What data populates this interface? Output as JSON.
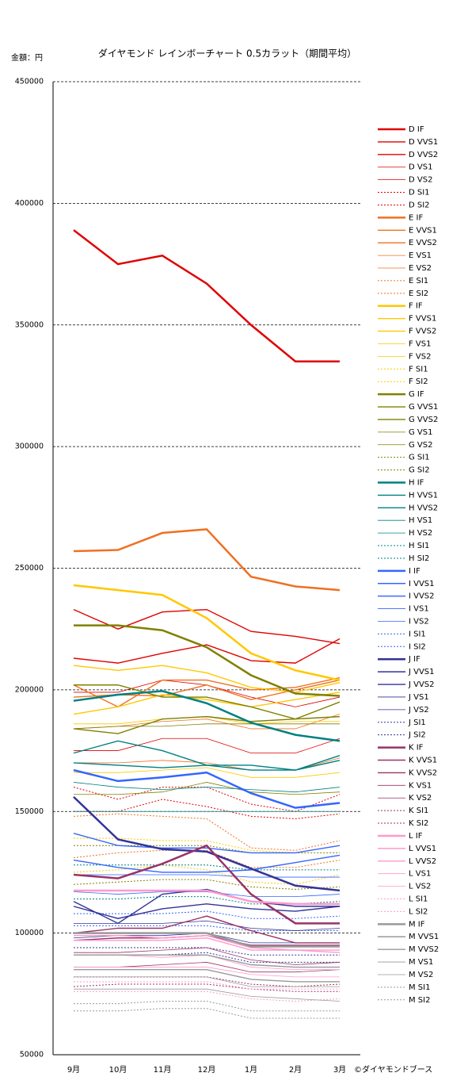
{
  "chart_data": {
    "type": "line",
    "title": "ダイヤモンド レインボーチャート 0.5カラット（期間平均）",
    "y_label": "金額：円",
    "source": "©ダイヤモンドブース",
    "categories": [
      "9月",
      "10月",
      "11月",
      "12月",
      "1月",
      "2月",
      "3月"
    ],
    "ylim": [
      50000,
      450000
    ],
    "yticks": [
      50000,
      100000,
      150000,
      200000,
      250000,
      300000,
      350000,
      400000,
      450000
    ],
    "grid": true,
    "series": [
      {
        "name": "D IF",
        "color": "#e00000",
        "width": 2.5,
        "dashed": false,
        "values": [
          389000,
          375000,
          378500,
          367000,
          350000,
          335000,
          335000
        ]
      },
      {
        "name": "D VVS1",
        "color": "#e00000",
        "width": 1.4,
        "dashed": false,
        "values": [
          233000,
          225000,
          232000,
          233000,
          224000,
          222000,
          219000
        ]
      },
      {
        "name": "D VVS2",
        "color": "#e00000",
        "width": 1.4,
        "dashed": false,
        "values": [
          213000,
          211000,
          215000,
          218500,
          212000,
          211000,
          221000
        ]
      },
      {
        "name": "D VS1",
        "color": "#e00000",
        "width": 0.8,
        "dashed": false,
        "values": [
          199000,
          199000,
          204000,
          202000,
          197000,
          193000,
          197000
        ]
      },
      {
        "name": "D VS2",
        "color": "#e00000",
        "width": 0.8,
        "dashed": false,
        "values": [
          175000,
          175000,
          180000,
          180000,
          174000,
          174000,
          180000
        ]
      },
      {
        "name": "D SI1",
        "color": "#e00000",
        "width": 1,
        "dashed": true,
        "values": [
          160000,
          155000,
          160000,
          160000,
          153000,
          150000,
          157000
        ]
      },
      {
        "name": "D SI2",
        "color": "#e00000",
        "width": 1,
        "dashed": true,
        "values": [
          150000,
          150000,
          155000,
          152000,
          148000,
          147000,
          149000
        ]
      },
      {
        "name": "E IF",
        "color": "#f07020",
        "width": 2.5,
        "dashed": false,
        "values": [
          257000,
          257500,
          264500,
          266000,
          246500,
          242500,
          241000
        ]
      },
      {
        "name": "E VVS1",
        "color": "#f07020",
        "width": 1.4,
        "dashed": false,
        "values": [
          202000,
          193000,
          204000,
          204000,
          200000,
          201000,
          205000
        ]
      },
      {
        "name": "E VVS2",
        "color": "#f07020",
        "width": 1.4,
        "dashed": false,
        "values": [
          197000,
          198000,
          197500,
          202000,
          196000,
          200000,
          204000
        ]
      },
      {
        "name": "E VS1",
        "color": "#f07020",
        "width": 0.8,
        "dashed": false,
        "values": [
          184000,
          185000,
          187000,
          188000,
          184000,
          184000,
          190000
        ]
      },
      {
        "name": "E VS2",
        "color": "#f07020",
        "width": 0.8,
        "dashed": false,
        "values": [
          170000,
          170000,
          171000,
          170000,
          167000,
          167000,
          172000
        ]
      },
      {
        "name": "E SI1",
        "color": "#f07020",
        "width": 1,
        "dashed": true,
        "values": [
          148000,
          149000,
          148000,
          147000,
          135000,
          134000,
          138000
        ]
      },
      {
        "name": "E SI2",
        "color": "#f07020",
        "width": 1,
        "dashed": true,
        "values": [
          131000,
          133000,
          134000,
          134000,
          127000,
          127000,
          130000
        ]
      },
      {
        "name": "F IF",
        "color": "#ffc800",
        "width": 2.5,
        "dashed": false,
        "values": [
          243000,
          241000,
          239000,
          229500,
          215000,
          208000,
          204000
        ]
      },
      {
        "name": "F VVS1",
        "color": "#ffc800",
        "width": 1.4,
        "dashed": false,
        "values": [
          210000,
          208000,
          210000,
          207000,
          201000,
          199000,
          203000
        ]
      },
      {
        "name": "F VVS2",
        "color": "#ffc800",
        "width": 1.4,
        "dashed": false,
        "values": [
          190000,
          193000,
          198000,
          196000,
          193000,
          196000,
          199000
        ]
      },
      {
        "name": "F VS1",
        "color": "#ffc800",
        "width": 0.8,
        "dashed": false,
        "values": [
          186000,
          186000,
          188000,
          189000,
          186000,
          187000,
          187000
        ]
      },
      {
        "name": "F VS2",
        "color": "#ffc800",
        "width": 0.8,
        "dashed": false,
        "values": [
          166000,
          166000,
          167000,
          168000,
          164000,
          164000,
          166000
        ]
      },
      {
        "name": "F SI1",
        "color": "#ffc800",
        "width": 1,
        "dashed": true,
        "values": [
          139000,
          139000,
          138000,
          138000,
          134000,
          133000,
          136000
        ]
      },
      {
        "name": "F SI2",
        "color": "#ffc800",
        "width": 1,
        "dashed": true,
        "values": [
          125000,
          126000,
          128000,
          126000,
          121000,
          120000,
          124000
        ]
      },
      {
        "name": "G IF",
        "color": "#808000",
        "width": 2.5,
        "dashed": false,
        "values": [
          226500,
          226500,
          224500,
          217500,
          206000,
          198500,
          197500
        ]
      },
      {
        "name": "G VVS1",
        "color": "#808000",
        "width": 1.4,
        "dashed": false,
        "values": [
          202000,
          202000,
          197000,
          197000,
          193000,
          188000,
          195000
        ]
      },
      {
        "name": "G VVS2",
        "color": "#808000",
        "width": 1.4,
        "dashed": false,
        "values": [
          184000,
          182000,
          188000,
          189000,
          187000,
          188000,
          189000
        ]
      },
      {
        "name": "G VS1",
        "color": "#808000",
        "width": 0.8,
        "dashed": false,
        "values": [
          184000,
          185000,
          185000,
          186000,
          186000,
          186000,
          186000
        ]
      },
      {
        "name": "G VS2",
        "color": "#808000",
        "width": 0.8,
        "dashed": false,
        "values": [
          157000,
          157000,
          158000,
          162000,
          158000,
          157000,
          158000
        ]
      },
      {
        "name": "G SI1",
        "color": "#808000",
        "width": 1,
        "dashed": true,
        "values": [
          136000,
          136000,
          136000,
          136000,
          133000,
          133000,
          133000
        ]
      },
      {
        "name": "G SI2",
        "color": "#808000",
        "width": 1,
        "dashed": true,
        "values": [
          120000,
          121000,
          122000,
          122000,
          119000,
          118000,
          119000
        ]
      },
      {
        "name": "H IF",
        "color": "#008080",
        "width": 2.5,
        "dashed": false,
        "values": [
          195500,
          198000,
          199500,
          194500,
          186500,
          181500,
          179000
        ]
      },
      {
        "name": "H VVS1",
        "color": "#008080",
        "width": 1.4,
        "dashed": false,
        "values": [
          174000,
          179000,
          175000,
          169000,
          169000,
          167000,
          173000
        ]
      },
      {
        "name": "H VVS2",
        "color": "#008080",
        "width": 1.4,
        "dashed": false,
        "values": [
          170000,
          169000,
          168000,
          169000,
          167000,
          167000,
          171000
        ]
      },
      {
        "name": "H VS1",
        "color": "#008080",
        "width": 0.8,
        "dashed": false,
        "values": [
          162000,
          160000,
          159000,
          160000,
          159000,
          158000,
          160000
        ]
      },
      {
        "name": "H VS2",
        "color": "#008080",
        "width": 0.8,
        "dashed": false,
        "values": [
          150000,
          150000,
          150000,
          150000,
          150000,
          150000,
          150000
        ]
      },
      {
        "name": "H SI1",
        "color": "#008080",
        "width": 1,
        "dashed": true,
        "values": [
          128000,
          128000,
          128000,
          128000,
          126000,
          126000,
          126000
        ]
      },
      {
        "name": "H SI2",
        "color": "#008080",
        "width": 1,
        "dashed": true,
        "values": [
          114000,
          114000,
          115000,
          115000,
          112000,
          112000,
          113000
        ]
      },
      {
        "name": "I IF",
        "color": "#3366ff",
        "width": 2.5,
        "dashed": false,
        "values": [
          167000,
          162500,
          164000,
          166000,
          157500,
          151500,
          153500
        ]
      },
      {
        "name": "I VVS1",
        "color": "#3366ff",
        "width": 1.4,
        "dashed": false,
        "values": [
          141000,
          136000,
          135000,
          135000,
          133000,
          133000,
          136000
        ]
      },
      {
        "name": "I VVS2",
        "color": "#3366ff",
        "width": 1.4,
        "dashed": false,
        "values": [
          130000,
          127000,
          125000,
          125000,
          126000,
          129000,
          132000
        ]
      },
      {
        "name": "I VS1",
        "color": "#3366ff",
        "width": 0.8,
        "dashed": false,
        "values": [
          124000,
          124000,
          124000,
          124000,
          123000,
          123000,
          123000
        ]
      },
      {
        "name": "I VS2",
        "color": "#3366ff",
        "width": 0.8,
        "dashed": false,
        "values": [
          117000,
          116000,
          117000,
          117000,
          115000,
          115000,
          116000
        ]
      },
      {
        "name": "I SI1",
        "color": "#3366ff",
        "width": 1,
        "dashed": true,
        "values": [
          108000,
          108000,
          108000,
          109000,
          106000,
          106000,
          107000
        ]
      },
      {
        "name": "I SI2",
        "color": "#3366ff",
        "width": 1,
        "dashed": true,
        "values": [
          103000,
          103000,
          103000,
          103000,
          101000,
          101000,
          101000
        ]
      },
      {
        "name": "J IF",
        "color": "#333399",
        "width": 2.5,
        "dashed": false,
        "values": [
          156000,
          138500,
          134500,
          133500,
          126500,
          119500,
          117500
        ]
      },
      {
        "name": "J VVS1",
        "color": "#333399",
        "width": 1.4,
        "dashed": false,
        "values": [
          113000,
          104000,
          116000,
          118000,
          113000,
          111000,
          111000
        ]
      },
      {
        "name": "J VVS2",
        "color": "#333399",
        "width": 1.4,
        "dashed": false,
        "values": [
          111000,
          106000,
          110000,
          112000,
          110000,
          109000,
          111000
        ]
      },
      {
        "name": "J VS1",
        "color": "#333399",
        "width": 0.8,
        "dashed": false,
        "values": [
          104000,
          104000,
          104000,
          105000,
          102000,
          101000,
          102000
        ]
      },
      {
        "name": "J VS2",
        "color": "#333399",
        "width": 0.8,
        "dashed": false,
        "values": [
          98000,
          99000,
          99000,
          100000,
          96000,
          96000,
          96000
        ]
      },
      {
        "name": "J SI1",
        "color": "#333399",
        "width": 1,
        "dashed": true,
        "values": [
          94000,
          94000,
          94000,
          94000,
          91000,
          91000,
          91000
        ]
      },
      {
        "name": "J SI2",
        "color": "#333399",
        "width": 1,
        "dashed": true,
        "values": [
          91000,
          91000,
          91000,
          92000,
          88000,
          88000,
          88000
        ]
      },
      {
        "name": "K IF",
        "color": "#993366",
        "width": 2.5,
        "dashed": false,
        "values": [
          124000,
          122500,
          128500,
          136000,
          116000,
          104000,
          104000
        ]
      },
      {
        "name": "K VVS1",
        "color": "#993366",
        "width": 1.4,
        "dashed": false,
        "values": [
          100000,
          102000,
          102000,
          107000,
          101000,
          96000,
          96000
        ]
      },
      {
        "name": "K VVS2",
        "color": "#993366",
        "width": 1.4,
        "dashed": false,
        "values": [
          97000,
          98000,
          98000,
          99000,
          95000,
          95000,
          95000
        ]
      },
      {
        "name": "K VS1",
        "color": "#993366",
        "width": 0.8,
        "dashed": false,
        "values": [
          92000,
          92000,
          93000,
          94000,
          89000,
          87000,
          88000
        ]
      },
      {
        "name": "K VS2",
        "color": "#993366",
        "width": 0.8,
        "dashed": false,
        "values": [
          86000,
          86000,
          87000,
          88000,
          84000,
          84000,
          85000
        ]
      },
      {
        "name": "K SI1",
        "color": "#993366",
        "width": 1,
        "dashed": true,
        "values": [
          82000,
          82000,
          82000,
          82000,
          79000,
          78000,
          79000
        ]
      },
      {
        "name": "K SI2",
        "color": "#993366",
        "width": 1,
        "dashed": true,
        "values": [
          78000,
          79000,
          79000,
          79000,
          77000,
          76000,
          76000
        ]
      },
      {
        "name": "L IF",
        "color": "#ff99cc",
        "width": 2.5,
        "dashed": false,
        "values": [
          117500,
          117500,
          117500,
          117500,
          113000,
          112000,
          112000
        ]
      },
      {
        "name": "L VVS1",
        "color": "#ff99cc",
        "width": 1.4,
        "dashed": false,
        "values": [
          99000,
          99000,
          98000,
          99000,
          94000,
          93000,
          93000
        ]
      },
      {
        "name": "L VVS2",
        "color": "#ff99cc",
        "width": 1.4,
        "dashed": false,
        "values": [
          97000,
          97000,
          97000,
          98000,
          93000,
          93000,
          92000
        ]
      },
      {
        "name": "L VS1",
        "color": "#ff99cc",
        "width": 0.8,
        "dashed": false,
        "values": [
          91000,
          91000,
          90000,
          91000,
          86000,
          85000,
          85000
        ]
      },
      {
        "name": "L VS2",
        "color": "#ff99cc",
        "width": 0.8,
        "dashed": false,
        "values": [
          86000,
          86000,
          86000,
          86000,
          83000,
          82000,
          82000
        ]
      },
      {
        "name": "L SI1",
        "color": "#ff99cc",
        "width": 1,
        "dashed": true,
        "values": [
          80000,
          80000,
          80000,
          80000,
          77000,
          77000,
          77000
        ]
      },
      {
        "name": "L SI2",
        "color": "#ff99cc",
        "width": 1,
        "dashed": true,
        "values": [
          76000,
          76000,
          76000,
          76000,
          73000,
          72000,
          73000
        ]
      },
      {
        "name": "M IF",
        "color": "#999999",
        "width": 2.5,
        "dashed": false,
        "values": [
          100000,
          100000,
          100000,
          100000,
          94500,
          94500,
          94500
        ]
      },
      {
        "name": "M VVS1",
        "color": "#999999",
        "width": 1.4,
        "dashed": false,
        "values": [
          91000,
          91000,
          91000,
          91000,
          87000,
          86000,
          86000
        ]
      },
      {
        "name": "M VVS2",
        "color": "#999999",
        "width": 1.4,
        "dashed": false,
        "values": [
          85000,
          85000,
          85000,
          85000,
          81000,
          80000,
          80000
        ]
      },
      {
        "name": "M VS1",
        "color": "#999999",
        "width": 0.8,
        "dashed": false,
        "values": [
          82000,
          82000,
          82000,
          82000,
          78000,
          78000,
          78000
        ]
      },
      {
        "name": "M VS2",
        "color": "#999999",
        "width": 0.8,
        "dashed": false,
        "values": [
          77000,
          77000,
          77000,
          77000,
          74000,
          73000,
          72000
        ]
      },
      {
        "name": "M SI1",
        "color": "#999999",
        "width": 1,
        "dashed": true,
        "values": [
          71000,
          71000,
          72000,
          72000,
          68000,
          68000,
          68000
        ]
      },
      {
        "name": "M SI2",
        "color": "#999999",
        "width": 1,
        "dashed": true,
        "values": [
          68000,
          68000,
          69000,
          69000,
          65000,
          65000,
          65000
        ]
      }
    ]
  }
}
